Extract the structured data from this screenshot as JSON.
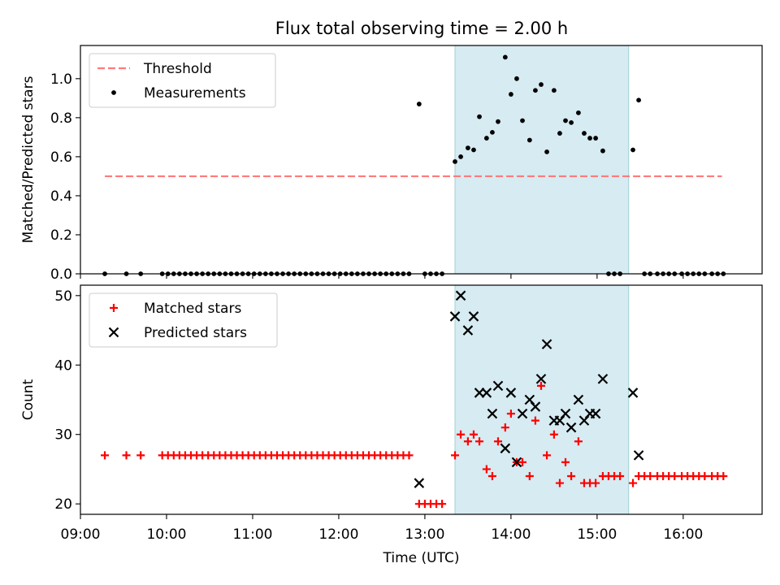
{
  "chart_data": [
    {
      "type": "scatter",
      "title": "Flux total observing time = 2.00 h",
      "xlabel": "",
      "ylabel": "Matched/Predicted stars",
      "xlim": [
        "09:00",
        "16:55"
      ],
      "ylim": [
        0,
        1.17
      ],
      "yticks": [
        "0.0",
        "0.2",
        "0.4",
        "0.6",
        "0.8",
        "1.0"
      ],
      "shaded_region": [
        "13:21",
        "15:22"
      ],
      "threshold": {
        "name": "Threshold",
        "value": 0.5,
        "x_range": [
          "09:17",
          "16:27"
        ],
        "color": "#ff7b7b"
      },
      "legend": [
        "Threshold",
        "Measurements"
      ],
      "legend_position": "upper left",
      "series": [
        {
          "name": "Measurements",
          "color": "#000000",
          "marker": "dot",
          "points": [
            [
              "09:17",
              0
            ],
            [
              "09:32",
              0
            ],
            [
              "09:42",
              0
            ],
            [
              "09:57",
              0
            ],
            [
              "10:01",
              0
            ],
            [
              "10:05",
              0
            ],
            [
              "10:09",
              0
            ],
            [
              "10:13",
              0
            ],
            [
              "10:17",
              0
            ],
            [
              "10:21",
              0
            ],
            [
              "10:25",
              0
            ],
            [
              "10:29",
              0
            ],
            [
              "10:33",
              0
            ],
            [
              "10:37",
              0
            ],
            [
              "10:41",
              0
            ],
            [
              "10:45",
              0
            ],
            [
              "10:49",
              0
            ],
            [
              "10:53",
              0
            ],
            [
              "10:57",
              0
            ],
            [
              "11:01",
              0
            ],
            [
              "11:05",
              0
            ],
            [
              "11:09",
              0
            ],
            [
              "11:13",
              0
            ],
            [
              "11:17",
              0
            ],
            [
              "11:21",
              0
            ],
            [
              "11:25",
              0
            ],
            [
              "11:29",
              0
            ],
            [
              "11:33",
              0
            ],
            [
              "11:37",
              0
            ],
            [
              "11:41",
              0
            ],
            [
              "11:45",
              0
            ],
            [
              "11:49",
              0
            ],
            [
              "11:53",
              0
            ],
            [
              "11:57",
              0
            ],
            [
              "12:01",
              0
            ],
            [
              "12:05",
              0
            ],
            [
              "12:09",
              0
            ],
            [
              "12:13",
              0
            ],
            [
              "12:17",
              0
            ],
            [
              "12:21",
              0
            ],
            [
              "12:25",
              0
            ],
            [
              "12:29",
              0
            ],
            [
              "12:33",
              0
            ],
            [
              "12:37",
              0
            ],
            [
              "12:41",
              0
            ],
            [
              "12:45",
              0
            ],
            [
              "12:49",
              0
            ],
            [
              "12:56",
              0.87
            ],
            [
              "13:00",
              0
            ],
            [
              "13:04",
              0
            ],
            [
              "13:08",
              0
            ],
            [
              "13:12",
              0
            ],
            [
              "13:21",
              0.575
            ],
            [
              "13:25",
              0.6
            ],
            [
              "13:30",
              0.645
            ],
            [
              "13:34",
              0.635
            ],
            [
              "13:38",
              0.805
            ],
            [
              "13:43",
              0.695
            ],
            [
              "13:47",
              0.725
            ],
            [
              "13:51",
              0.78
            ],
            [
              "13:56",
              1.11
            ],
            [
              "14:00",
              0.92
            ],
            [
              "14:04",
              1.0
            ],
            [
              "14:08",
              0.785
            ],
            [
              "14:13",
              0.685
            ],
            [
              "14:17",
              0.94
            ],
            [
              "14:21",
              0.97
            ],
            [
              "14:25",
              0.625
            ],
            [
              "14:30",
              0.94
            ],
            [
              "14:34",
              0.72
            ],
            [
              "14:38",
              0.785
            ],
            [
              "14:42",
              0.775
            ],
            [
              "14:47",
              0.825
            ],
            [
              "14:51",
              0.72
            ],
            [
              "14:55",
              0.695
            ],
            [
              "14:59",
              0.695
            ],
            [
              "15:04",
              0.63
            ],
            [
              "15:08",
              0
            ],
            [
              "15:12",
              0
            ],
            [
              "15:16",
              0
            ],
            [
              "15:25",
              0.635
            ],
            [
              "15:29",
              0.89
            ],
            [
              "15:33",
              0
            ],
            [
              "15:37",
              0
            ],
            [
              "15:42",
              0
            ],
            [
              "15:46",
              0
            ],
            [
              "15:50",
              0
            ],
            [
              "15:54",
              0
            ],
            [
              "15:59",
              0
            ],
            [
              "16:03",
              0
            ],
            [
              "16:07",
              0
            ],
            [
              "16:11",
              0
            ],
            [
              "16:15",
              0
            ],
            [
              "16:20",
              0
            ],
            [
              "16:24",
              0
            ],
            [
              "16:28",
              0
            ]
          ]
        }
      ]
    },
    {
      "type": "scatter",
      "title": "",
      "xlabel": "Time (UTC)",
      "ylabel": "Count",
      "xlim": [
        "09:00",
        "16:55"
      ],
      "ylim": [
        18.5,
        51.5
      ],
      "yticks": [
        "20",
        "30",
        "40",
        "50"
      ],
      "xticks": [
        "09:00",
        "10:00",
        "11:00",
        "12:00",
        "13:00",
        "14:00",
        "15:00",
        "16:00"
      ],
      "shaded_region": [
        "13:21",
        "15:22"
      ],
      "legend": [
        "Matched stars",
        "Predicted stars"
      ],
      "legend_position": "upper left",
      "series": [
        {
          "name": "Matched stars",
          "color": "#ff0000",
          "marker": "plus",
          "points": [
            [
              "09:17",
              27
            ],
            [
              "09:32",
              27
            ],
            [
              "09:42",
              27
            ],
            [
              "09:57",
              27
            ],
            [
              "10:01",
              27
            ],
            [
              "10:05",
              27
            ],
            [
              "10:09",
              27
            ],
            [
              "10:13",
              27
            ],
            [
              "10:17",
              27
            ],
            [
              "10:21",
              27
            ],
            [
              "10:25",
              27
            ],
            [
              "10:29",
              27
            ],
            [
              "10:33",
              27
            ],
            [
              "10:37",
              27
            ],
            [
              "10:41",
              27
            ],
            [
              "10:45",
              27
            ],
            [
              "10:49",
              27
            ],
            [
              "10:53",
              27
            ],
            [
              "10:57",
              27
            ],
            [
              "11:01",
              27
            ],
            [
              "11:05",
              27
            ],
            [
              "11:09",
              27
            ],
            [
              "11:13",
              27
            ],
            [
              "11:17",
              27
            ],
            [
              "11:21",
              27
            ],
            [
              "11:25",
              27
            ],
            [
              "11:29",
              27
            ],
            [
              "11:33",
              27
            ],
            [
              "11:37",
              27
            ],
            [
              "11:41",
              27
            ],
            [
              "11:45",
              27
            ],
            [
              "11:49",
              27
            ],
            [
              "11:53",
              27
            ],
            [
              "11:57",
              27
            ],
            [
              "12:01",
              27
            ],
            [
              "12:05",
              27
            ],
            [
              "12:09",
              27
            ],
            [
              "12:13",
              27
            ],
            [
              "12:17",
              27
            ],
            [
              "12:21",
              27
            ],
            [
              "12:25",
              27
            ],
            [
              "12:29",
              27
            ],
            [
              "12:33",
              27
            ],
            [
              "12:37",
              27
            ],
            [
              "12:41",
              27
            ],
            [
              "12:45",
              27
            ],
            [
              "12:49",
              27
            ],
            [
              "12:56",
              20
            ],
            [
              "13:00",
              20
            ],
            [
              "13:04",
              20
            ],
            [
              "13:08",
              20
            ],
            [
              "13:12",
              20
            ],
            [
              "13:21",
              27
            ],
            [
              "13:25",
              30
            ],
            [
              "13:30",
              29
            ],
            [
              "13:34",
              30
            ],
            [
              "13:38",
              29
            ],
            [
              "13:43",
              25
            ],
            [
              "13:47",
              24
            ],
            [
              "13:51",
              29
            ],
            [
              "13:56",
              31
            ],
            [
              "14:00",
              33
            ],
            [
              "14:04",
              26
            ],
            [
              "14:08",
              26
            ],
            [
              "14:13",
              24
            ],
            [
              "14:17",
              32
            ],
            [
              "14:21",
              37
            ],
            [
              "14:25",
              27
            ],
            [
              "14:30",
              30
            ],
            [
              "14:34",
              23
            ],
            [
              "14:38",
              26
            ],
            [
              "14:42",
              24
            ],
            [
              "14:47",
              29
            ],
            [
              "14:51",
              23
            ],
            [
              "14:55",
              23
            ],
            [
              "14:59",
              23
            ],
            [
              "15:04",
              24
            ],
            [
              "15:08",
              24
            ],
            [
              "15:12",
              24
            ],
            [
              "15:16",
              24
            ],
            [
              "15:25",
              23
            ],
            [
              "15:29",
              24
            ],
            [
              "15:33",
              24
            ],
            [
              "15:37",
              24
            ],
            [
              "15:42",
              24
            ],
            [
              "15:46",
              24
            ],
            [
              "15:50",
              24
            ],
            [
              "15:54",
              24
            ],
            [
              "15:59",
              24
            ],
            [
              "16:03",
              24
            ],
            [
              "16:07",
              24
            ],
            [
              "16:11",
              24
            ],
            [
              "16:15",
              24
            ],
            [
              "16:20",
              24
            ],
            [
              "16:24",
              24
            ],
            [
              "16:28",
              24
            ]
          ]
        },
        {
          "name": "Predicted stars",
          "color": "#000000",
          "marker": "x",
          "points": [
            [
              "12:56",
              23
            ],
            [
              "13:21",
              47
            ],
            [
              "13:25",
              50
            ],
            [
              "13:30",
              45
            ],
            [
              "13:34",
              47
            ],
            [
              "13:38",
              36
            ],
            [
              "13:43",
              36
            ],
            [
              "13:47",
              33
            ],
            [
              "13:51",
              37
            ],
            [
              "13:56",
              28
            ],
            [
              "14:00",
              36
            ],
            [
              "14:04",
              26
            ],
            [
              "14:08",
              33
            ],
            [
              "14:13",
              35
            ],
            [
              "14:17",
              34
            ],
            [
              "14:21",
              38
            ],
            [
              "14:25",
              43
            ],
            [
              "14:30",
              32
            ],
            [
              "14:34",
              32
            ],
            [
              "14:38",
              33
            ],
            [
              "14:42",
              31
            ],
            [
              "14:47",
              35
            ],
            [
              "14:51",
              32
            ],
            [
              "14:55",
              33
            ],
            [
              "14:59",
              33
            ],
            [
              "15:04",
              38
            ],
            [
              "15:25",
              36
            ],
            [
              "15:29",
              27
            ]
          ]
        }
      ]
    }
  ]
}
